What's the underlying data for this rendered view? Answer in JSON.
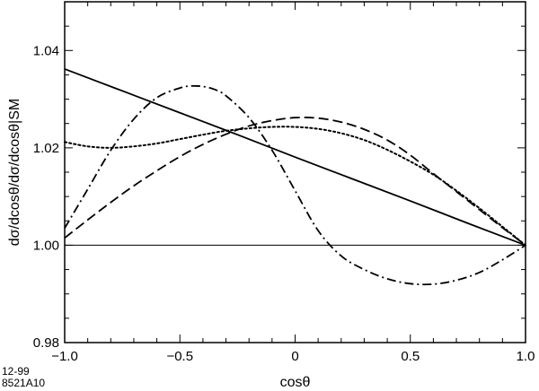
{
  "chart_data": {
    "type": "line",
    "xlabel": "cosθ",
    "ylabel": "dσ/dcosθ/dσ/dcosθ|SM",
    "xlim": [
      -1.0,
      1.0
    ],
    "ylim": [
      0.98,
      1.05
    ],
    "x_ticks": [
      -1.0,
      -0.5,
      0.0,
      0.5,
      1.0
    ],
    "x_tick_labels": [
      "−1.0",
      "−0.5",
      "0",
      "0.5",
      "1.0"
    ],
    "y_ticks": [
      0.98,
      1.0,
      1.02,
      1.04
    ],
    "y_tick_labels": [
      "0.98",
      "1.00",
      "1.02",
      "1.04"
    ],
    "reference_line": 1.0,
    "grid": false,
    "series": [
      {
        "style": "solid",
        "x": [
          -1.0,
          -0.75,
          -0.5,
          -0.25,
          0.0,
          0.25,
          0.5,
          0.75,
          1.0
        ],
        "y": [
          1.0362,
          1.0317,
          1.0272,
          1.0227,
          1.0181,
          1.0136,
          1.0091,
          1.0045,
          1.0
        ]
      },
      {
        "style": "long-dash",
        "x": [
          -1.0,
          -0.9,
          -0.8,
          -0.7,
          -0.6,
          -0.5,
          -0.4,
          -0.3,
          -0.2,
          -0.1,
          0.0,
          0.1,
          0.2,
          0.3,
          0.4,
          0.5,
          0.6,
          0.7,
          0.8,
          0.9,
          1.0
        ],
        "y": [
          1.0015,
          1.0052,
          1.0088,
          1.0122,
          1.0153,
          1.0182,
          1.0207,
          1.0228,
          1.0245,
          1.0256,
          1.0262,
          1.0261,
          1.0253,
          1.0238,
          1.0216,
          1.0185,
          1.0147,
          1.011,
          1.0073,
          1.0036,
          1.0
        ]
      },
      {
        "style": "dotted",
        "x": [
          -1.0,
          -0.9,
          -0.8,
          -0.7,
          -0.6,
          -0.5,
          -0.4,
          -0.3,
          -0.2,
          -0.1,
          0.0,
          0.1,
          0.2,
          0.3,
          0.4,
          0.5,
          0.6,
          0.7,
          0.8,
          0.9,
          1.0
        ],
        "y": [
          1.0212,
          1.0203,
          1.02,
          1.0203,
          1.0209,
          1.0218,
          1.0227,
          1.0235,
          1.024,
          1.0243,
          1.0243,
          1.0239,
          1.023,
          1.0216,
          1.0196,
          1.0172,
          1.0145,
          1.0112,
          1.0076,
          1.0038,
          1.0
        ]
      },
      {
        "style": "dash-dot",
        "x": [
          -1.0,
          -0.9,
          -0.8,
          -0.7,
          -0.6,
          -0.5,
          -0.45,
          -0.4,
          -0.35,
          -0.3,
          -0.2,
          -0.1,
          0.0,
          0.1,
          0.2,
          0.3,
          0.4,
          0.5,
          0.6,
          0.7,
          0.8,
          0.9,
          1.0
        ],
        "y": [
          1.0035,
          1.0115,
          1.0195,
          1.0259,
          1.0303,
          1.0323,
          1.0327,
          1.0326,
          1.032,
          1.0307,
          1.0262,
          1.0195,
          1.0112,
          1.003,
          0.9978,
          0.995,
          0.9931,
          0.9921,
          0.992,
          0.9928,
          0.9944,
          0.997,
          1.0
        ]
      }
    ]
  },
  "notes": {
    "line1": "12-99",
    "line2": "8521A10"
  }
}
